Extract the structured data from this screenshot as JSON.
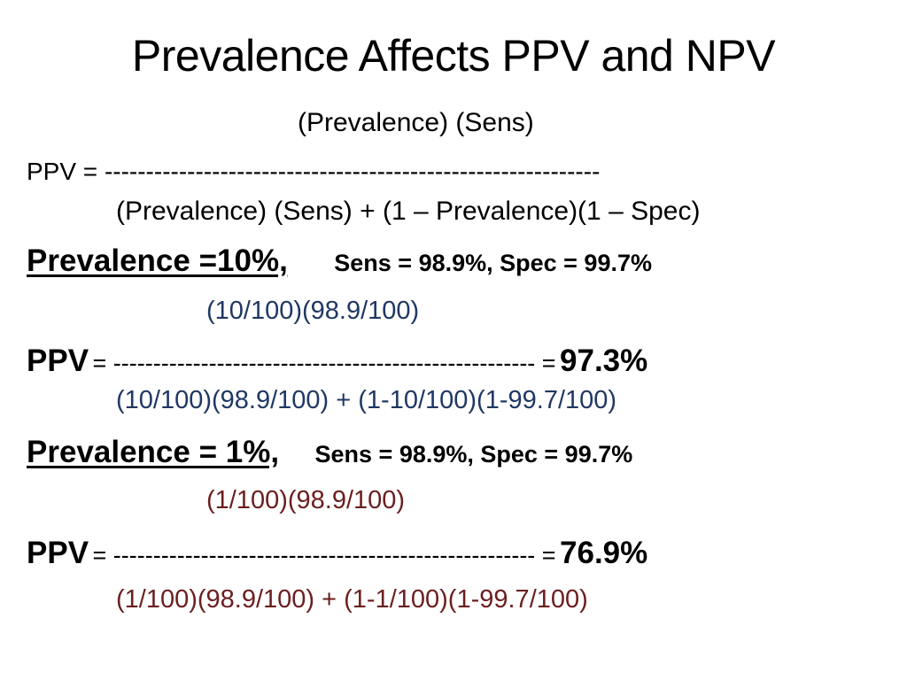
{
  "title": "Prevalence Affects PPV and NPV",
  "general_formula": {
    "numerator": "(Prevalence) (Sens)",
    "lhs": "PPV = ------------------------------------------------------------",
    "denominator": "(Prevalence) (Sens) + (1 – Prevalence)(1 – Spec)"
  },
  "case1": {
    "label": "Prevalence =10%,",
    "params": "Sens = 98.9%, Spec = 99.7%",
    "numerator": "(10/100)(98.9/100)",
    "ppv_label": "PPV",
    "ppv_line": "= ----------------------------------------------------- =",
    "result": "97.3%",
    "denominator": "(10/100)(98.9/100) + (1-10/100)(1-99.7/100)"
  },
  "case2": {
    "label": "Prevalence = 1%,",
    "params": "Sens = 98.9%, Spec = 99.7%",
    "numerator": "(1/100)(98.9/100)",
    "ppv_label": "PPV",
    "ppv_line": "= ----------------------------------------------------- =",
    "result": "76.9%",
    "denominator": "(1/100)(98.9/100) + (1-1/100)(1-99.7/100)"
  },
  "colors": {
    "case1_formula": "#1f3864",
    "case2_formula": "#6b1f1f"
  }
}
